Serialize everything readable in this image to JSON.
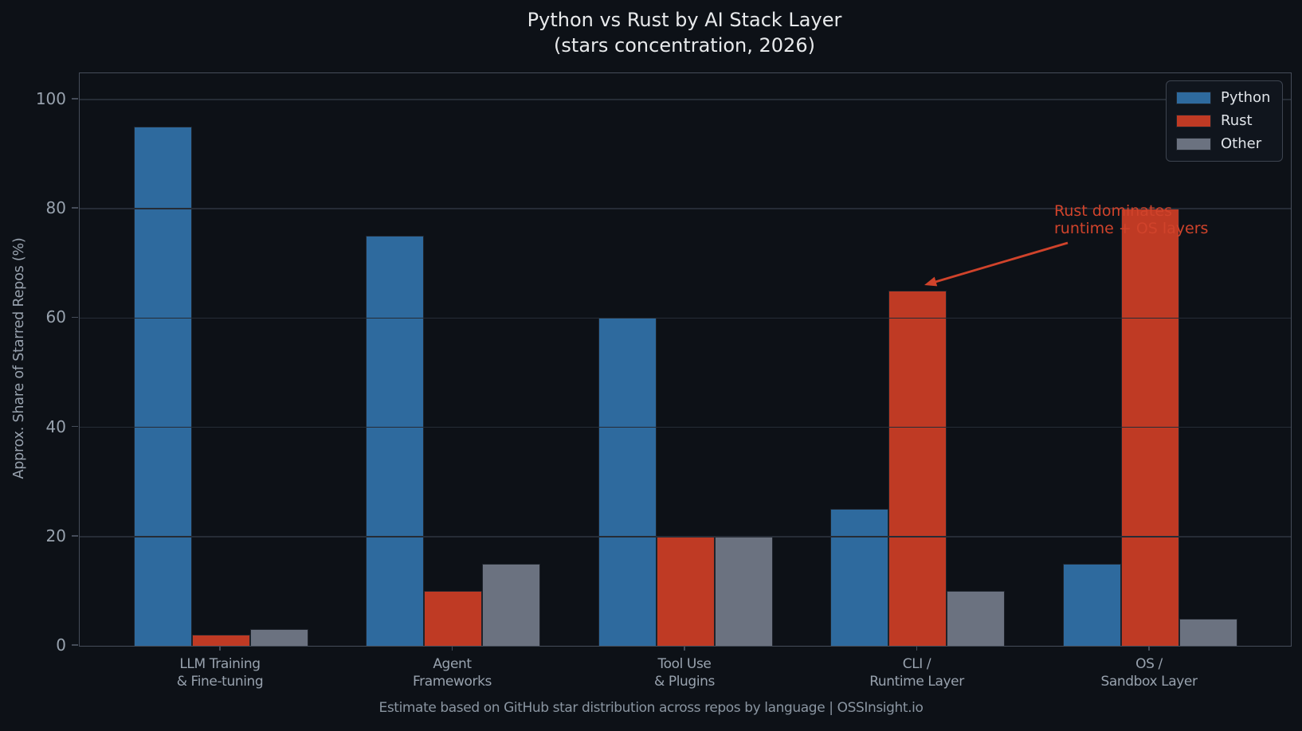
{
  "colors": {
    "background": "#0d1117",
    "grid": "#262c36",
    "spine": "#454c59",
    "tick_label": "#98a2ae",
    "title_text": "#e8eaec",
    "footer_text": "#8a95a1",
    "annotation": "#d0432b",
    "legend_border": "#3d4450",
    "legend_text": "#dfe3e8",
    "bar_edge": "#1e232b"
  },
  "chart_data": {
    "type": "bar",
    "title": "Python vs Rust by AI Stack Layer",
    "subtitle": "(stars concentration, 2026)",
    "xlabel": "",
    "ylabel": "Approx. Share of Starred Repos (%)",
    "ylim": [
      0,
      104.8
    ],
    "yticks": [
      0,
      20,
      40,
      60,
      80,
      100
    ],
    "grid": true,
    "legend_position": "upper right",
    "categories": [
      [
        "LLM Training",
        "& Fine-tuning"
      ],
      [
        "Agent",
        "Frameworks"
      ],
      [
        "Tool Use",
        "& Plugins"
      ],
      [
        "CLI /",
        "Runtime Layer"
      ],
      [
        "OS /",
        "Sandbox Layer"
      ]
    ],
    "series": [
      {
        "name": "Python",
        "color": "#2e6a9e",
        "values": [
          95,
          75,
          60,
          25,
          15
        ]
      },
      {
        "name": "Rust",
        "color": "#bf3a24",
        "values": [
          2,
          10,
          20,
          65,
          80
        ]
      },
      {
        "name": "Other",
        "color": "#6b7280",
        "values": [
          3,
          15,
          20,
          10,
          5
        ]
      }
    ],
    "annotation": {
      "line1": "Rust dominates",
      "line2": "runtime + OS layers",
      "points_to": "Rust bar at CLI / Runtime Layer (65%)"
    },
    "source_note": "Estimate based on GitHub star distribution across repos by language | OSSInsight.io"
  }
}
